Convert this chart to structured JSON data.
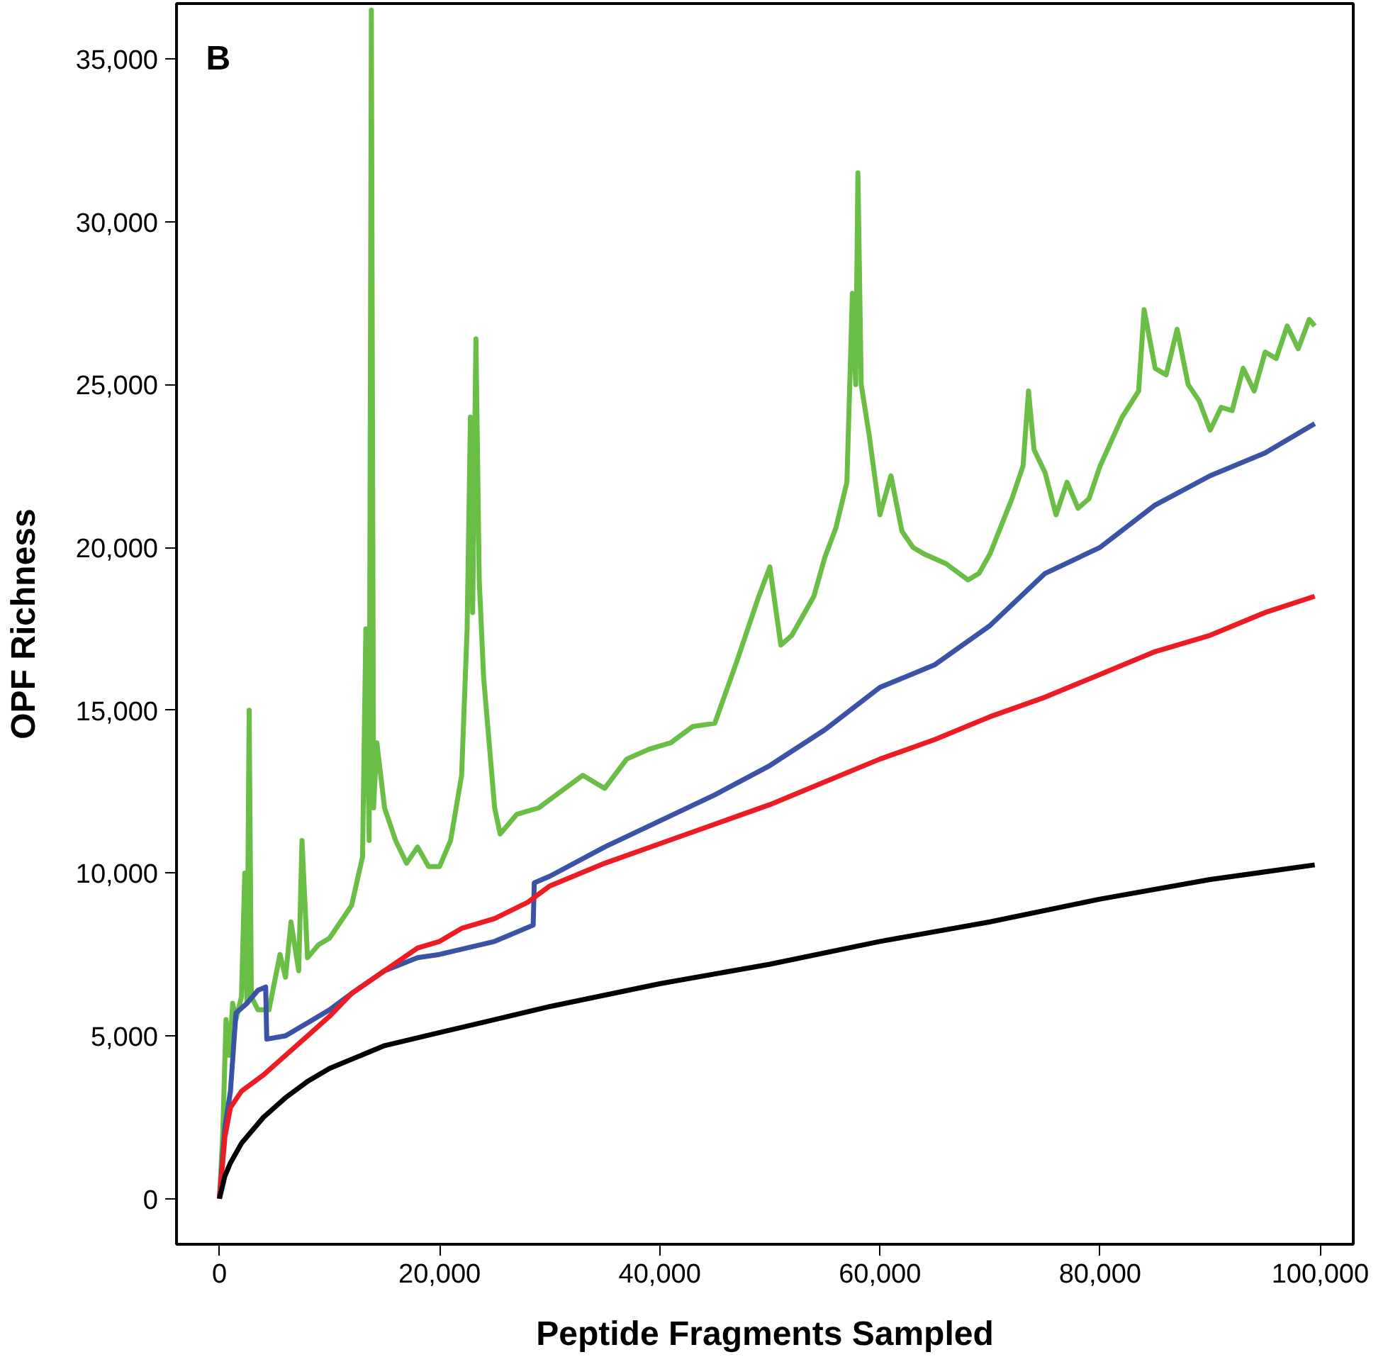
{
  "chart_data": {
    "type": "line",
    "xlabel": "Peptide Fragments Sampled",
    "ylabel": "OPF Richness",
    "annotations": [
      "B"
    ],
    "xlim": [
      -3900,
      103000
    ],
    "ylim": [
      -1400,
      36700
    ],
    "xticks": [
      {
        "value": 0,
        "label": "0"
      },
      {
        "value": 20000,
        "label": "20,000"
      },
      {
        "value": 40000,
        "label": "40,000"
      },
      {
        "value": 60000,
        "label": "60,000"
      },
      {
        "value": 80000,
        "label": "80,000"
      },
      {
        "value": 100000,
        "label": "100,000"
      }
    ],
    "yticks": [
      {
        "value": 0,
        "label": "0"
      },
      {
        "value": 5000,
        "label": "5,000"
      },
      {
        "value": 10000,
        "label": "10,000"
      },
      {
        "value": 15000,
        "label": "15,000"
      },
      {
        "value": 20000,
        "label": "20,000"
      },
      {
        "value": 25000,
        "label": "25,000"
      },
      {
        "value": 30000,
        "label": "30,000"
      },
      {
        "value": 35000,
        "label": "35,000"
      }
    ],
    "grid": false,
    "marker": "none",
    "line_style": "solid",
    "series": [
      {
        "color": "#6abd45",
        "x": [
          0,
          300,
          600,
          900,
          1200,
          1500,
          2000,
          2300,
          2500,
          2700,
          2900,
          3500,
          4500,
          5500,
          6000,
          6500,
          7200,
          7500,
          8000,
          9000,
          10000,
          11000,
          12000,
          13000,
          13300,
          13600,
          13800,
          14000,
          14300,
          15000,
          16000,
          17000,
          18000,
          19000,
          20000,
          21000,
          22000,
          22500,
          22800,
          23000,
          23300,
          23600,
          24000,
          25000,
          25500,
          27000,
          29000,
          31000,
          33000,
          35000,
          37000,
          39000,
          41000,
          43000,
          45000,
          47000,
          49000,
          50000,
          51000,
          52000,
          54000,
          55000,
          56000,
          57000,
          57500,
          57800,
          58000,
          58300,
          59000,
          60000,
          61000,
          62000,
          63000,
          64000,
          66000,
          68000,
          69000,
          70000,
          72000,
          73000,
          73500,
          74000,
          75000,
          76000,
          77000,
          78000,
          79000,
          80000,
          82000,
          83500,
          84000,
          85000,
          86000,
          87000,
          88000,
          89000,
          90000,
          91000,
          92000,
          93000,
          94000,
          95000,
          96000,
          97000,
          98000,
          99000,
          99500
        ],
        "values": [
          0,
          2000,
          5500,
          4400,
          6000,
          5500,
          6200,
          10000,
          6000,
          15000,
          6200,
          5800,
          5800,
          7500,
          6800,
          8500,
          7000,
          11000,
          7400,
          7800,
          8000,
          8500,
          9000,
          10500,
          17500,
          11000,
          36500,
          12000,
          14000,
          12000,
          11000,
          10300,
          10800,
          10200,
          10200,
          11000,
          13000,
          17500,
          24000,
          18000,
          26400,
          19000,
          16000,
          12000,
          11200,
          11800,
          12000,
          12500,
          13000,
          12600,
          13500,
          13800,
          14000,
          14500,
          14600,
          16500,
          18500,
          19400,
          17000,
          17300,
          18500,
          19700,
          20600,
          22000,
          27800,
          25000,
          31500,
          25000,
          23500,
          21000,
          22200,
          20500,
          20000,
          19800,
          19500,
          19000,
          19200,
          19800,
          21500,
          22500,
          24800,
          23000,
          22300,
          21000,
          22000,
          21200,
          21500,
          22500,
          24000,
          24800,
          27300,
          25500,
          25300,
          26700,
          25000,
          24500,
          23600,
          24300,
          24200,
          25500,
          24800,
          26000,
          25800,
          26800,
          26100,
          27000,
          26800
        ]
      },
      {
        "color": "#3a53a4",
        "x": [
          0,
          500,
          1000,
          1500,
          2500,
          3500,
          4200,
          4300,
          6000,
          8000,
          10000,
          12000,
          15000,
          18000,
          20000,
          25000,
          28500,
          28600,
          30000,
          35000,
          40000,
          45000,
          50000,
          55000,
          60000,
          65000,
          70000,
          75000,
          80000,
          85000,
          90000,
          95000,
          99500
        ],
        "values": [
          0,
          2200,
          3300,
          5700,
          6000,
          6400,
          6500,
          4900,
          5000,
          5400,
          5800,
          6300,
          7000,
          7400,
          7500,
          7900,
          8400,
          9700,
          9900,
          10800,
          11600,
          12400,
          13300,
          14400,
          15700,
          16400,
          17600,
          19200,
          20000,
          21300,
          22200,
          22900,
          23800
        ]
      },
      {
        "color": "#ed1c24",
        "x": [
          0,
          500,
          1000,
          2000,
          4000,
          6000,
          8000,
          10000,
          12000,
          15000,
          18000,
          20000,
          22000,
          25000,
          28000,
          30000,
          35000,
          40000,
          45000,
          50000,
          55000,
          60000,
          65000,
          70000,
          75000,
          80000,
          85000,
          90000,
          95000,
          99500
        ],
        "values": [
          0,
          1900,
          2800,
          3300,
          3800,
          4400,
          5000,
          5600,
          6300,
          7000,
          7700,
          7900,
          8300,
          8600,
          9100,
          9600,
          10300,
          10900,
          11500,
          12100,
          12800,
          13500,
          14100,
          14800,
          15400,
          16100,
          16800,
          17300,
          18000,
          18500
        ]
      },
      {
        "color": "#000000",
        "x": [
          0,
          500,
          1000,
          2000,
          4000,
          6000,
          8000,
          10000,
          15000,
          20000,
          25000,
          30000,
          40000,
          50000,
          60000,
          70000,
          80000,
          90000,
          99500
        ],
        "values": [
          0,
          700,
          1100,
          1700,
          2500,
          3100,
          3600,
          4000,
          4700,
          5100,
          5500,
          5900,
          6600,
          7200,
          7900,
          8500,
          9200,
          9800,
          10250
        ]
      }
    ]
  }
}
